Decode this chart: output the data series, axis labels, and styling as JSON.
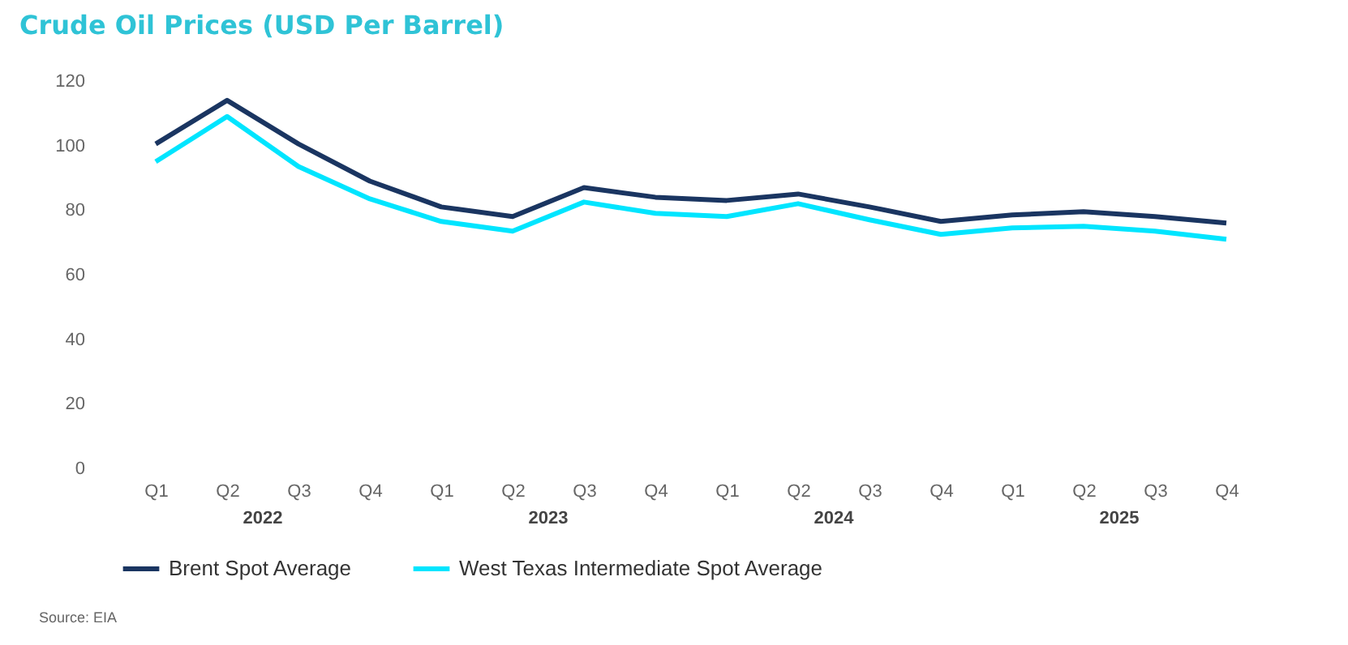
{
  "chart_data": {
    "type": "line",
    "title": "Crude Oil Prices (USD Per Barrel)",
    "categories": [
      "Q1",
      "Q2",
      "Q3",
      "Q4",
      "Q1",
      "Q2",
      "Q3",
      "Q4",
      "Q1",
      "Q2",
      "Q3",
      "Q4",
      "Q1",
      "Q2",
      "Q3",
      "Q4"
    ],
    "series": [
      {
        "name": "Brent Spot Average",
        "color": "#1a3561",
        "values": [
          100.5,
          114,
          100.5,
          89,
          81,
          78,
          87,
          84,
          83,
          85,
          81,
          76.5,
          78.5,
          79.5,
          78,
          76
        ]
      },
      {
        "name": "West Texas Intermediate Spot Average",
        "color": "#00e5ff",
        "values": [
          95,
          109,
          93.5,
          83.5,
          76.5,
          73.5,
          82.5,
          79,
          78,
          82,
          77,
          72.5,
          74.5,
          75,
          73.5,
          71
        ]
      }
    ],
    "ylim": [
      0,
      120
    ],
    "yticks": [
      0,
      20,
      40,
      60,
      80,
      100,
      120
    ],
    "grid": false,
    "legend": "bottom",
    "annotations": [
      "2022",
      "2023",
      "2024",
      "2025",
      "Source: EIA"
    ]
  }
}
